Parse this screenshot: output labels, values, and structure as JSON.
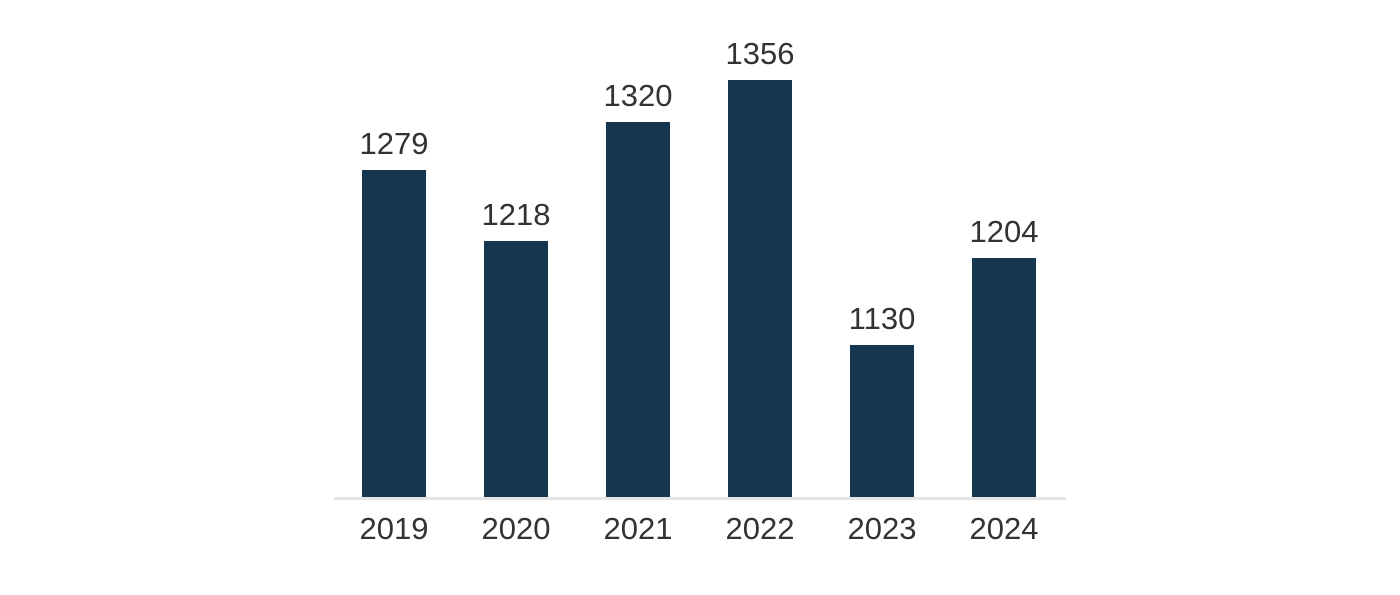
{
  "chart_data": {
    "type": "bar",
    "title": "",
    "xlabel": "",
    "ylabel": "",
    "categories": [
      "2019",
      "2020",
      "2021",
      "2022",
      "2023",
      "2024"
    ],
    "values": [
      1279,
      1218,
      1320,
      1356,
      1130,
      1204
    ],
    "data_labels": [
      1279,
      1218,
      1320,
      1356,
      1130,
      1204
    ],
    "ylim": [
      1000,
      1424
    ],
    "grid": false,
    "legend": false,
    "y_axis_visible": false,
    "x_axis_line_visible": true,
    "colors": {
      "bar": "#14374F",
      "axis_line": "#E4E4E4",
      "label_text": "#333333",
      "background": "#FFFFFF"
    }
  }
}
